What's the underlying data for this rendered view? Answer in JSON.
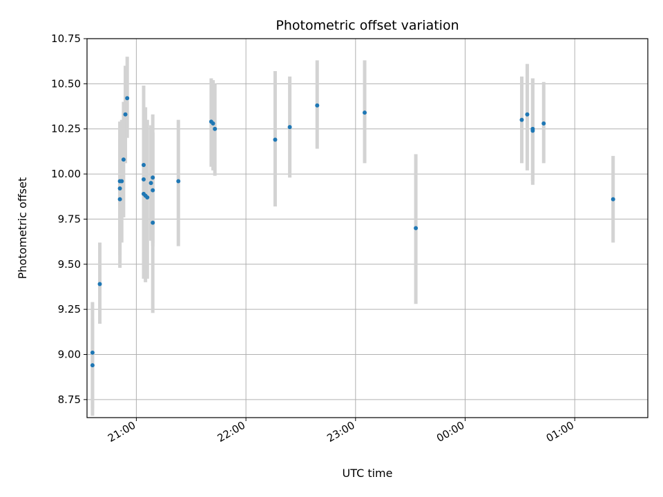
{
  "chart_data": {
    "type": "scatter",
    "title": "Photometric offset variation",
    "xlabel": "UTC time",
    "ylabel": "Photometric offset",
    "x_axis_kind": "time",
    "xlim": [
      "20:33",
      "01:40"
    ],
    "ylim": [
      8.65,
      10.75
    ],
    "xticks": [
      {
        "time": "21:00",
        "label": "21:00"
      },
      {
        "time": "22:00",
        "label": "22:00"
      },
      {
        "time": "23:00",
        "label": "23:00"
      },
      {
        "time": "00:00",
        "label": "00:00"
      },
      {
        "time": "01:00",
        "label": "01:00"
      }
    ],
    "yticks": [
      8.75,
      9.0,
      9.25,
      9.5,
      9.75,
      10.0,
      10.25,
      10.5,
      10.75
    ],
    "ytick_labels": [
      "8.75",
      "9.00",
      "9.25",
      "9.50",
      "9.75",
      "10.00",
      "10.25",
      "10.50",
      "10.75"
    ],
    "grid": true,
    "point_color": "#1f77b4",
    "errorbar_color": "#d3d3d3",
    "series": [
      {
        "points": [
          {
            "t": "20:36",
            "y": 8.94,
            "ylo": 8.7,
            "yhi": 9.2
          },
          {
            "t": "20:36",
            "y": 9.01,
            "ylo": 8.66,
            "yhi": 9.29
          },
          {
            "t": "20:40",
            "y": 9.39,
            "ylo": 9.17,
            "yhi": 9.62
          },
          {
            "t": "20:51",
            "y": 9.86,
            "ylo": 9.48,
            "yhi": 10.19
          },
          {
            "t": "20:51",
            "y": 9.92,
            "ylo": 9.55,
            "yhi": 10.29
          },
          {
            "t": "20:51",
            "y": 9.96,
            "ylo": 9.63,
            "yhi": 10.29
          },
          {
            "t": "20:52",
            "y": 9.96,
            "ylo": 9.62,
            "yhi": 10.3
          },
          {
            "t": "20:53",
            "y": 10.08,
            "ylo": 9.76,
            "yhi": 10.4
          },
          {
            "t": "20:54",
            "y": 10.33,
            "ylo": 10.06,
            "yhi": 10.6
          },
          {
            "t": "20:55",
            "y": 10.42,
            "ylo": 10.2,
            "yhi": 10.65
          },
          {
            "t": "21:04",
            "y": 9.89,
            "ylo": 9.42,
            "yhi": 10.35
          },
          {
            "t": "21:04",
            "y": 9.97,
            "ylo": 9.57,
            "yhi": 10.37
          },
          {
            "t": "21:04",
            "y": 10.05,
            "ylo": 9.62,
            "yhi": 10.49
          },
          {
            "t": "21:05",
            "y": 9.88,
            "ylo": 9.4,
            "yhi": 10.37
          },
          {
            "t": "21:06",
            "y": 9.87,
            "ylo": 9.42,
            "yhi": 10.3
          },
          {
            "t": "21:08",
            "y": 9.95,
            "ylo": 9.63,
            "yhi": 10.27
          },
          {
            "t": "21:09",
            "y": 9.98,
            "ylo": 9.62,
            "yhi": 10.33
          },
          {
            "t": "21:09",
            "y": 9.91,
            "ylo": 9.6,
            "yhi": 10.23
          },
          {
            "t": "21:09",
            "y": 9.73,
            "ylo": 9.23,
            "yhi": 10.23
          },
          {
            "t": "21:23",
            "y": 9.96,
            "ylo": 9.6,
            "yhi": 10.3
          },
          {
            "t": "21:41",
            "y": 10.29,
            "ylo": 10.04,
            "yhi": 10.53
          },
          {
            "t": "21:42",
            "y": 10.28,
            "ylo": 10.02,
            "yhi": 10.52
          },
          {
            "t": "21:43",
            "y": 10.25,
            "ylo": 9.99,
            "yhi": 10.5
          },
          {
            "t": "22:16",
            "y": 10.19,
            "ylo": 9.82,
            "yhi": 10.57
          },
          {
            "t": "22:24",
            "y": 10.26,
            "ylo": 9.98,
            "yhi": 10.54
          },
          {
            "t": "22:39",
            "y": 10.38,
            "ylo": 10.14,
            "yhi": 10.63
          },
          {
            "t": "23:05",
            "y": 10.34,
            "ylo": 10.06,
            "yhi": 10.63
          },
          {
            "t": "23:33",
            "y": 9.7,
            "ylo": 9.28,
            "yhi": 10.11
          },
          {
            "t": "00:31",
            "y": 10.3,
            "ylo": 10.06,
            "yhi": 10.54
          },
          {
            "t": "00:34",
            "y": 10.33,
            "ylo": 10.02,
            "yhi": 10.61
          },
          {
            "t": "00:37",
            "y": 10.24,
            "ylo": 9.94,
            "yhi": 10.53
          },
          {
            "t": "00:37",
            "y": 10.25,
            "ylo": 9.96,
            "yhi": 10.53
          },
          {
            "t": "00:43",
            "y": 10.28,
            "ylo": 10.06,
            "yhi": 10.51
          },
          {
            "t": "01:21",
            "y": 9.86,
            "ylo": 9.62,
            "yhi": 10.1
          }
        ]
      }
    ]
  }
}
